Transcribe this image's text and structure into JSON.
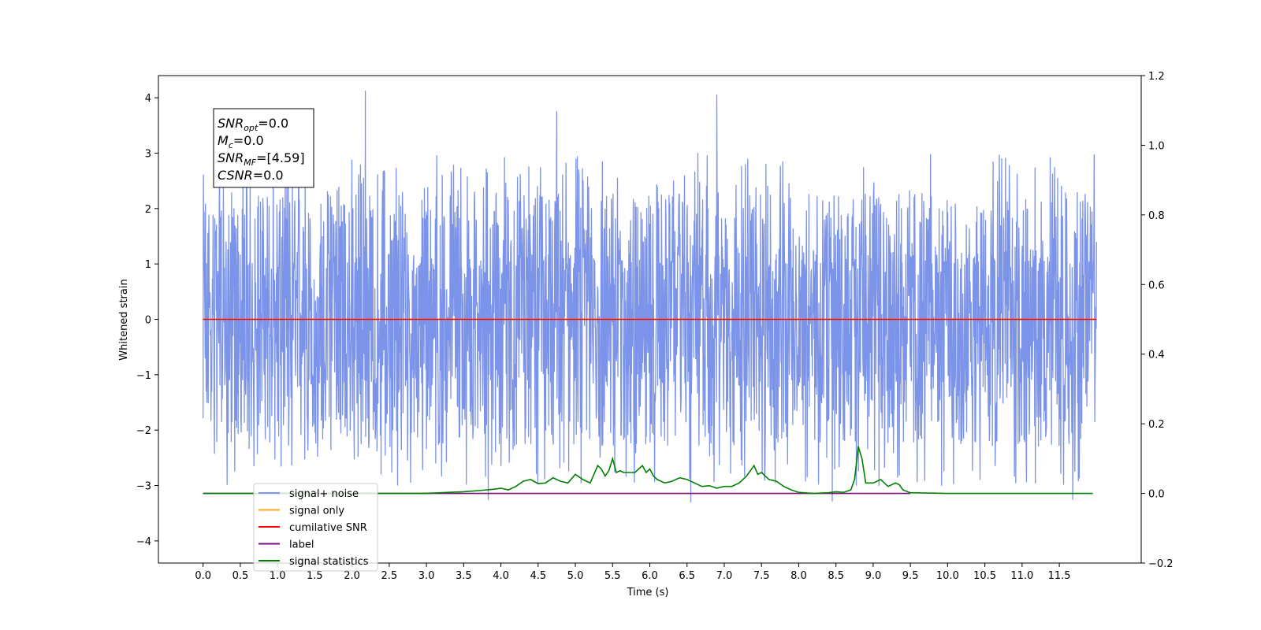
{
  "chart_data": {
    "type": "line",
    "title": "",
    "xlabel": "Time (s)",
    "ylabel": "Whitened strain",
    "xlim": [
      -0.6,
      12.6
    ],
    "ylim": [
      -4.4,
      4.4
    ],
    "y2lim": [
      -0.2,
      1.2
    ],
    "grid": false,
    "legend_position": "lower-left",
    "x_ticks": [
      "0.0",
      "0.5",
      "1.0",
      "1.5",
      "2.0",
      "2.5",
      "3.0",
      "3.5",
      "4.0",
      "4.5",
      "5.0",
      "5.5",
      "6.0",
      "6.5",
      "7.0",
      "7.5",
      "8.0",
      "8.5",
      "9.0",
      "9.5",
      "10.0",
      "10.5",
      "11.0",
      "11.5"
    ],
    "y_ticks": [
      "4",
      "3",
      "2",
      "1",
      "0",
      "−1",
      "−2",
      "−3",
      "−4"
    ],
    "y2_ticks": [
      "1.2",
      "1.0",
      "0.8",
      "0.6",
      "0.4",
      "0.2",
      "0.0",
      "−0.2"
    ],
    "annotation": {
      "lines": [
        {
          "base": "SNR",
          "sub": "opt",
          "rest": "=0.0"
        },
        {
          "base": "M",
          "sub": "c",
          "rest": "=0.0"
        },
        {
          "base": "SNR",
          "sub": "MF",
          "rest": "=[4.59]"
        },
        {
          "base": "CSNR",
          "sub": "",
          "rest": "=0.0"
        }
      ]
    },
    "series": [
      {
        "name": "signal+ noise",
        "color": "#7b93e8",
        "axis": "left",
        "x_range": [
          0,
          12
        ],
        "typical_envelope": [
          -2.3,
          2.3
        ],
        "peaks": [
          {
            "x": 2.18,
            "y": 4.12
          },
          {
            "x": 6.9,
            "y": 4.05
          },
          {
            "x": 4.75,
            "y": 3.75
          },
          {
            "x": 6.55,
            "y": -3.3
          },
          {
            "x": 8.45,
            "y": -3.28
          },
          {
            "x": 11.68,
            "y": -3.25
          },
          {
            "x": 3.83,
            "y": -3.25
          }
        ]
      },
      {
        "name": "signal only",
        "color": "#f5a623",
        "axis": "left",
        "x_range": [
          0,
          12
        ],
        "values_constant": 0.0
      },
      {
        "name": "cumilative SNR",
        "color": "#ff0000",
        "axis": "left",
        "x_range": [
          0,
          12
        ],
        "values_constant": 0.0
      },
      {
        "name": "label",
        "color": "#7b0f7b",
        "axis": "right",
        "x_range": [
          0,
          9.5
        ],
        "values_constant": 0.0
      },
      {
        "name": "signal statistics",
        "color": "#008000",
        "axis": "right",
        "x": [
          0.0,
          0.5,
          1.0,
          1.5,
          2.0,
          2.5,
          2.9,
          3.1,
          3.3,
          3.5,
          3.7,
          3.9,
          4.0,
          4.1,
          4.2,
          4.3,
          4.4,
          4.5,
          4.6,
          4.7,
          4.8,
          4.9,
          5.0,
          5.1,
          5.2,
          5.3,
          5.35,
          5.4,
          5.45,
          5.5,
          5.55,
          5.6,
          5.65,
          5.7,
          5.8,
          5.9,
          5.95,
          6.0,
          6.05,
          6.1,
          6.2,
          6.3,
          6.4,
          6.5,
          6.6,
          6.7,
          6.8,
          6.9,
          7.0,
          7.1,
          7.2,
          7.3,
          7.4,
          7.45,
          7.5,
          7.6,
          7.7,
          7.8,
          7.9,
          8.0,
          8.2,
          8.4,
          8.5,
          8.6,
          8.7,
          8.75,
          8.8,
          8.85,
          8.9,
          9.0,
          9.1,
          9.2,
          9.3,
          9.35,
          9.4,
          9.5,
          10.0,
          11.0,
          11.95
        ],
        "values": [
          0.0,
          0.0,
          0.0,
          0.0,
          0.0,
          0.0,
          0.0,
          0.001,
          0.003,
          0.005,
          0.008,
          0.012,
          0.015,
          0.01,
          0.02,
          0.035,
          0.04,
          0.028,
          0.03,
          0.045,
          0.035,
          0.03,
          0.055,
          0.04,
          0.03,
          0.08,
          0.07,
          0.05,
          0.065,
          0.1,
          0.06,
          0.065,
          0.06,
          0.06,
          0.06,
          0.08,
          0.06,
          0.07,
          0.05,
          0.04,
          0.03,
          0.035,
          0.045,
          0.04,
          0.03,
          0.02,
          0.022,
          0.015,
          0.02,
          0.02,
          0.03,
          0.05,
          0.08,
          0.055,
          0.06,
          0.04,
          0.035,
          0.02,
          0.01,
          0.003,
          0.0,
          0.002,
          0.005,
          0.003,
          0.01,
          0.04,
          0.135,
          0.1,
          0.03,
          0.03,
          0.04,
          0.02,
          0.03,
          0.025,
          0.01,
          0.002,
          0.0,
          0.0,
          0.0
        ]
      }
    ]
  }
}
